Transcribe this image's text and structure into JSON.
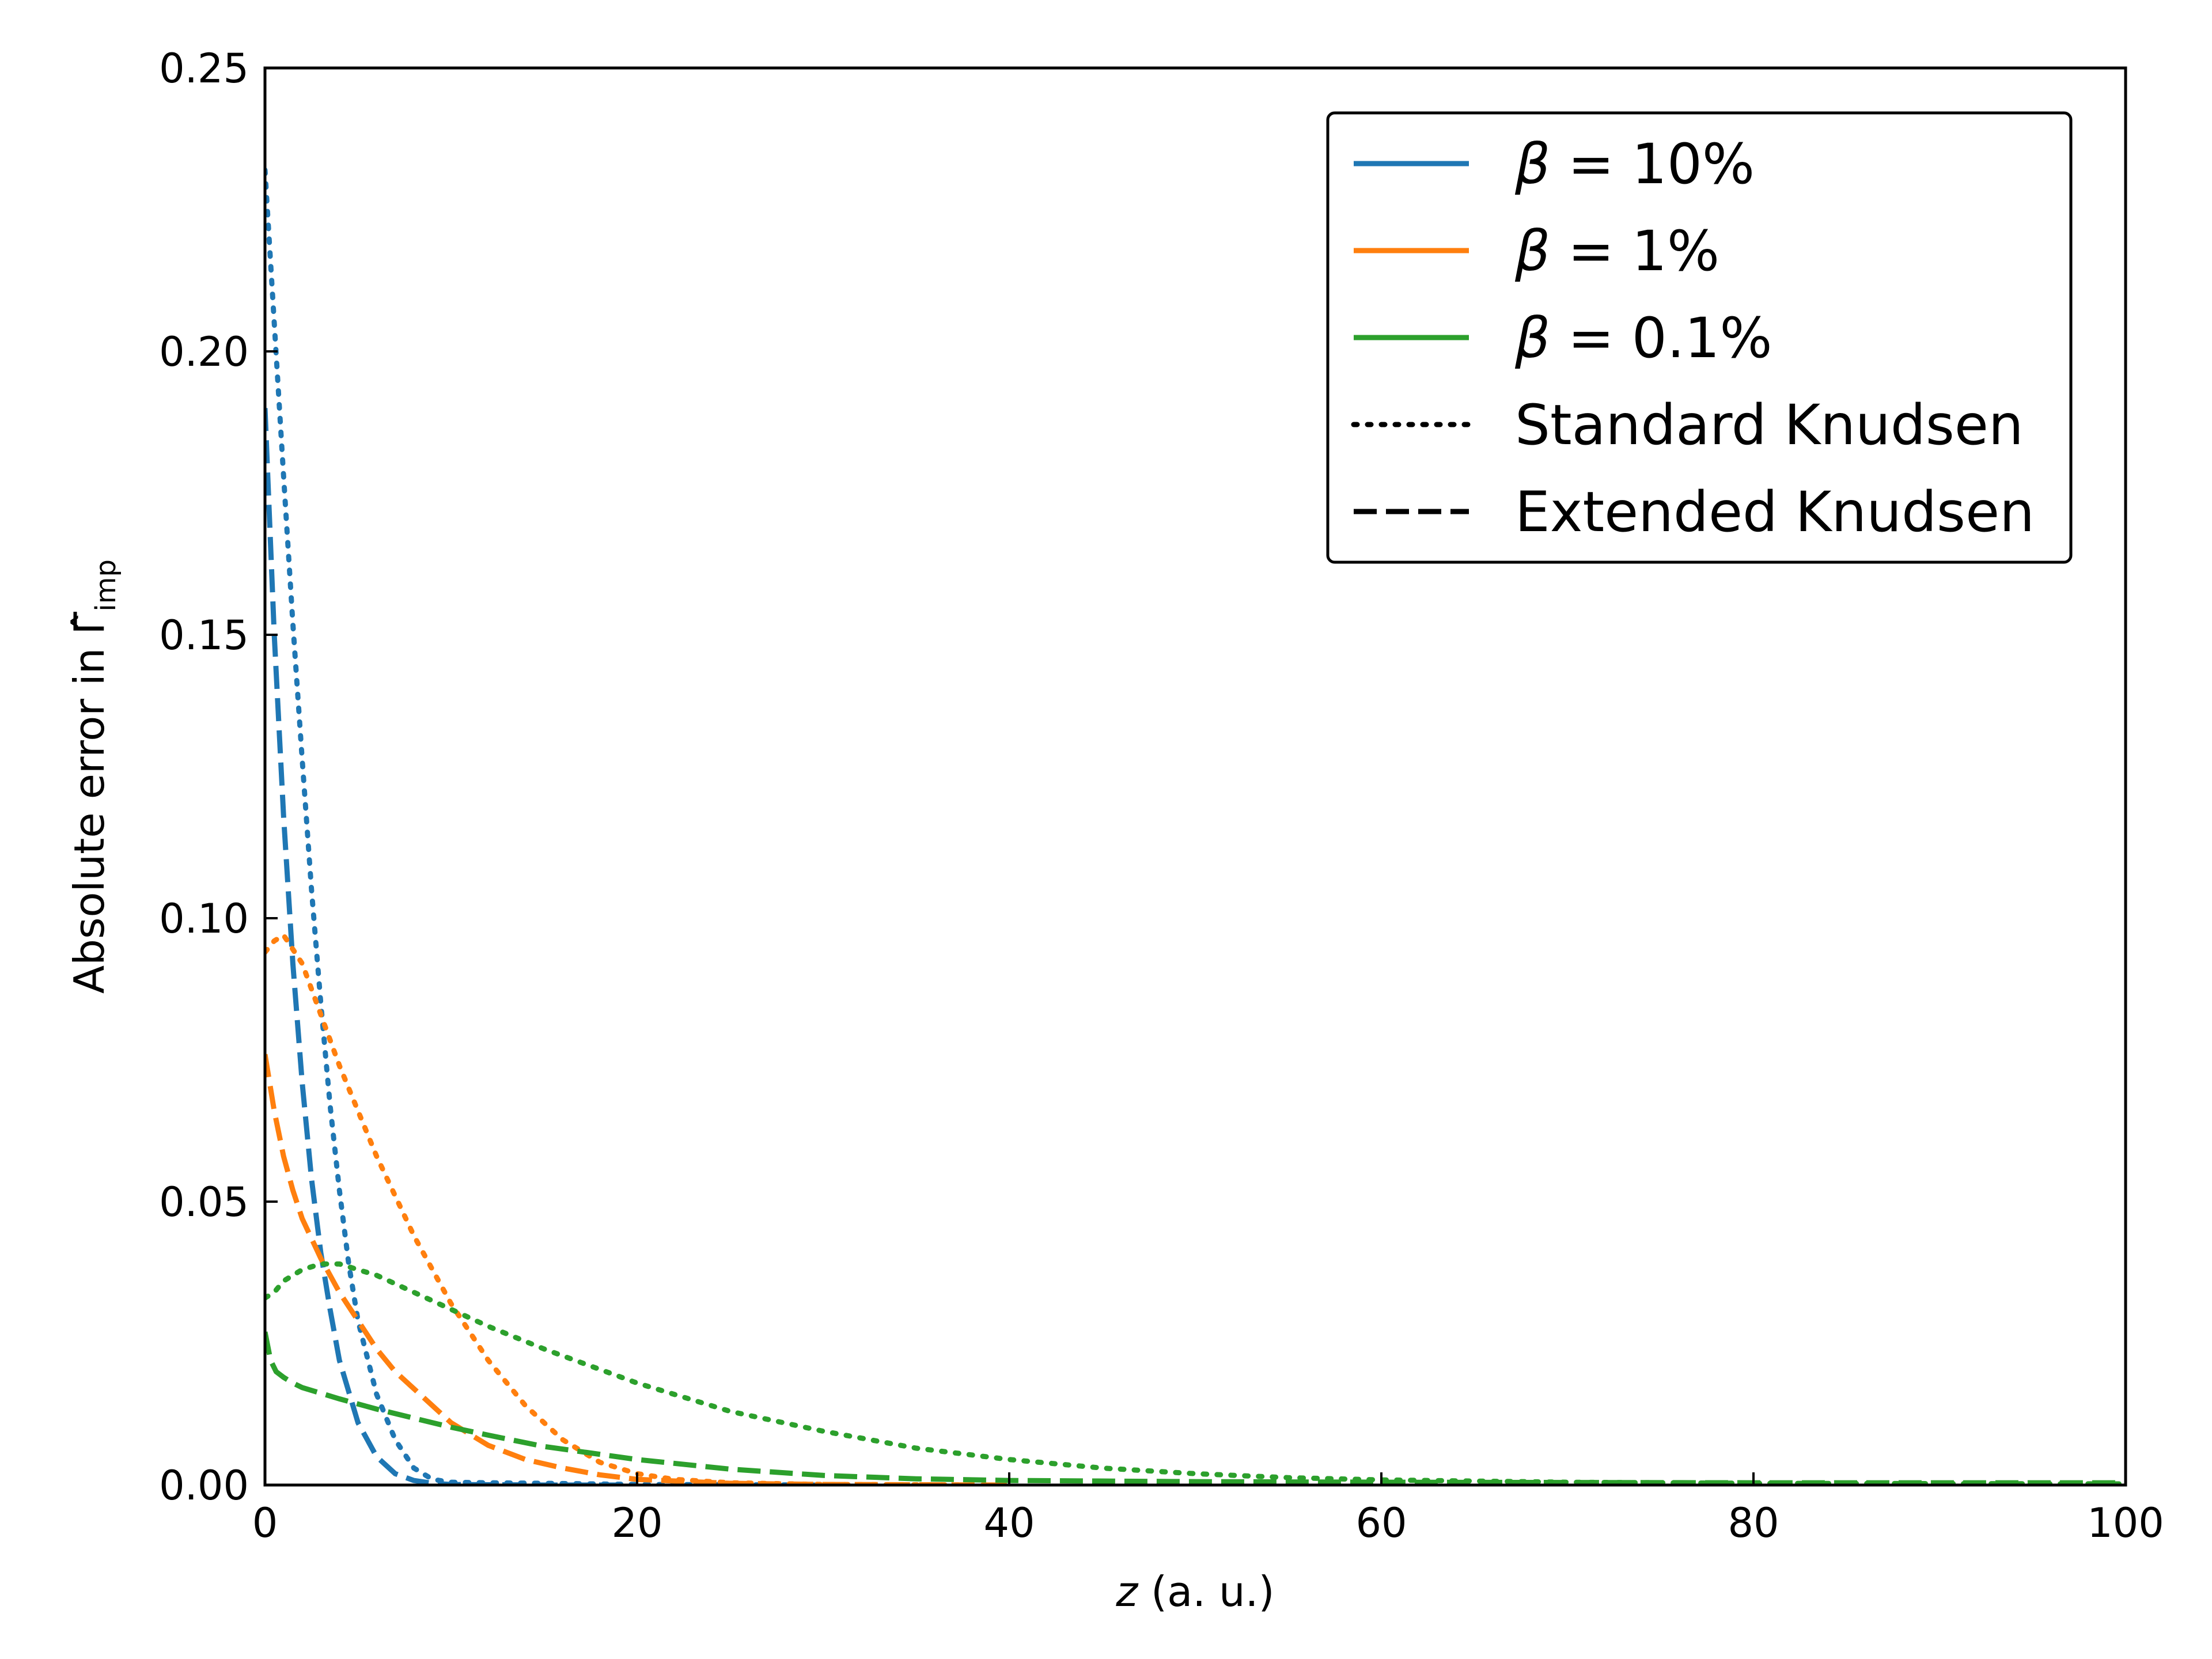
{
  "chart_data": {
    "type": "line",
    "title": "",
    "xlabel": {
      "italic": "z",
      "rest": " (a. u.)"
    },
    "ylabel": {
      "text": "Absolute error in ",
      "symbol": "Γ̂",
      "subscript": "imp"
    },
    "xlim": [
      0,
      100
    ],
    "ylim": [
      0,
      0.25
    ],
    "xticks": [
      0,
      20,
      40,
      60,
      80,
      100
    ],
    "xtick_labels": [
      "0",
      "20",
      "40",
      "60",
      "80",
      "100"
    ],
    "yticks": [
      0,
      0.05,
      0.1,
      0.15,
      0.2,
      0.25
    ],
    "ytick_labels": [
      "0.00",
      "0.05",
      "0.10",
      "0.15",
      "0.20",
      "0.25"
    ],
    "grid": false,
    "legend_position": "top-right",
    "legend": [
      {
        "symbol": "β",
        "text": " = 10%",
        "color": "#1f77b4",
        "style": "solid"
      },
      {
        "symbol": "β",
        "text": " = 1%",
        "color": "#ff7f0e",
        "style": "solid"
      },
      {
        "symbol": "β",
        "text": " = 0.1%",
        "color": "#2ca02c",
        "style": "solid"
      },
      {
        "symbol": "",
        "text": "Standard Knudsen",
        "color": "#000000",
        "style": "dotted"
      },
      {
        "symbol": "",
        "text": "Extended Knudsen",
        "color": "#000000",
        "style": "dashed"
      }
    ],
    "series": [
      {
        "beta": "10%",
        "model": "Standard Knudsen",
        "color": "#1f77b4",
        "style": "dotted",
        "x": [
          0,
          0.5,
          1,
          1.5,
          2,
          2.5,
          3,
          3.5,
          4,
          4.5,
          5,
          6,
          7,
          8,
          9,
          10,
          12,
          15,
          20,
          30
        ],
        "y": [
          0.232,
          0.205,
          0.178,
          0.152,
          0.128,
          0.105,
          0.085,
          0.067,
          0.052,
          0.039,
          0.029,
          0.016,
          0.008,
          0.003,
          0.001,
          0.0005,
          0.0004,
          0.0003,
          0.0001,
          0.0
        ]
      },
      {
        "beta": "10%",
        "model": "Extended Knudsen",
        "color": "#1f77b4",
        "style": "dashed",
        "x": [
          0,
          0.5,
          1,
          1.5,
          2,
          2.5,
          3,
          3.5,
          4,
          5,
          6,
          7,
          8,
          9,
          10,
          15,
          20
        ],
        "y": [
          0.19,
          0.15,
          0.118,
          0.092,
          0.071,
          0.054,
          0.041,
          0.031,
          0.022,
          0.011,
          0.005,
          0.002,
          0.0008,
          0.0003,
          0.0001,
          0.0,
          0.0
        ]
      },
      {
        "beta": "1%",
        "model": "Standard Knudsen",
        "color": "#ff7f0e",
        "style": "dotted",
        "x": [
          0,
          0.5,
          1,
          2,
          3,
          4,
          5,
          6,
          7,
          8,
          9,
          10,
          11,
          12,
          13,
          14,
          15,
          16,
          18,
          20,
          22,
          25,
          30,
          40
        ],
        "y": [
          0.094,
          0.096,
          0.097,
          0.092,
          0.083,
          0.074,
          0.066,
          0.058,
          0.051,
          0.044,
          0.038,
          0.032,
          0.027,
          0.022,
          0.018,
          0.014,
          0.011,
          0.008,
          0.004,
          0.002,
          0.001,
          0.0004,
          0.0001,
          0.0
        ]
      },
      {
        "beta": "1%",
        "model": "Extended Knudsen",
        "color": "#ff7f0e",
        "style": "dashed",
        "x": [
          0,
          0.5,
          1,
          1.5,
          2,
          3,
          4,
          5,
          6,
          7,
          8,
          9,
          10,
          12,
          14,
          16,
          18,
          20,
          25,
          30,
          40
        ],
        "y": [
          0.076,
          0.066,
          0.058,
          0.052,
          0.047,
          0.04,
          0.034,
          0.029,
          0.024,
          0.02,
          0.017,
          0.014,
          0.011,
          0.007,
          0.0045,
          0.003,
          0.0018,
          0.001,
          0.0003,
          0.0001,
          0.0
        ]
      },
      {
        "beta": "0.1%",
        "model": "Standard Knudsen",
        "color": "#2ca02c",
        "style": "dotted",
        "x": [
          0,
          0.5,
          1,
          2,
          3,
          4,
          5,
          6,
          8,
          10,
          12,
          15,
          20,
          25,
          30,
          35,
          40,
          45,
          50,
          55,
          60,
          70,
          80,
          100
        ],
        "y": [
          0.033,
          0.034,
          0.036,
          0.038,
          0.039,
          0.039,
          0.038,
          0.037,
          0.034,
          0.031,
          0.028,
          0.024,
          0.018,
          0.013,
          0.0095,
          0.0065,
          0.0045,
          0.003,
          0.002,
          0.0013,
          0.0009,
          0.0005,
          0.0003,
          0.0002
        ]
      },
      {
        "beta": "0.1%",
        "model": "Extended Knudsen",
        "color": "#2ca02c",
        "style": "dashed",
        "x": [
          0,
          0.3,
          0.6,
          1,
          1.5,
          2,
          3,
          4,
          5,
          6,
          8,
          10,
          12,
          15,
          20,
          25,
          30,
          35,
          40,
          50,
          60,
          80,
          100
        ],
        "y": [
          0.027,
          0.022,
          0.02,
          0.019,
          0.018,
          0.0172,
          0.0162,
          0.0152,
          0.0143,
          0.0134,
          0.0118,
          0.0102,
          0.0088,
          0.0068,
          0.0045,
          0.0028,
          0.0017,
          0.0011,
          0.0008,
          0.0006,
          0.0005,
          0.0004,
          0.0004
        ]
      }
    ]
  }
}
